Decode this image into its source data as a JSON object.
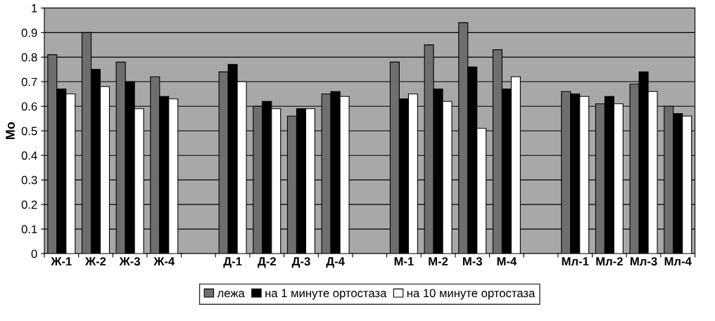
{
  "chart_data": {
    "type": "bar",
    "ylabel": "Mo",
    "categories": [
      "Ж-1",
      "Ж-2",
      "Ж-3",
      "Ж-4",
      null,
      "Д-1",
      "Д-2",
      "Д-3",
      "Д-4",
      null,
      "М-1",
      "М-2",
      "М-3",
      "М-4",
      null,
      "Мл-1",
      "Мл-2",
      "Мл-3",
      "Мл-4"
    ],
    "series": [
      {
        "name": "лежа",
        "color": "#6e6e6e",
        "values": [
          0.81,
          0.9,
          0.78,
          0.72,
          null,
          0.74,
          0.6,
          0.56,
          0.65,
          null,
          0.78,
          0.85,
          0.94,
          0.83,
          null,
          0.66,
          0.61,
          0.69,
          0.6
        ]
      },
      {
        "name": "на 1 минуте ортостаза",
        "color": "#000000",
        "values": [
          0.67,
          0.75,
          0.7,
          0.64,
          null,
          0.77,
          0.62,
          0.59,
          0.66,
          null,
          0.63,
          0.67,
          0.76,
          0.67,
          null,
          0.65,
          0.64,
          0.74,
          0.57
        ]
      },
      {
        "name": "на 10 минуте ортостаза",
        "color": "#ffffff",
        "values": [
          0.65,
          0.68,
          0.59,
          0.63,
          null,
          0.7,
          0.59,
          0.59,
          0.64,
          null,
          0.65,
          0.62,
          0.51,
          0.72,
          null,
          0.64,
          0.61,
          0.66,
          0.56
        ]
      }
    ],
    "ylim": [
      0,
      1
    ],
    "yticks": [
      0,
      0.1,
      0.2,
      0.3,
      0.4,
      0.5,
      0.6,
      0.7,
      0.8,
      0.9,
      1
    ],
    "grid": "y",
    "legend": "bottom"
  }
}
